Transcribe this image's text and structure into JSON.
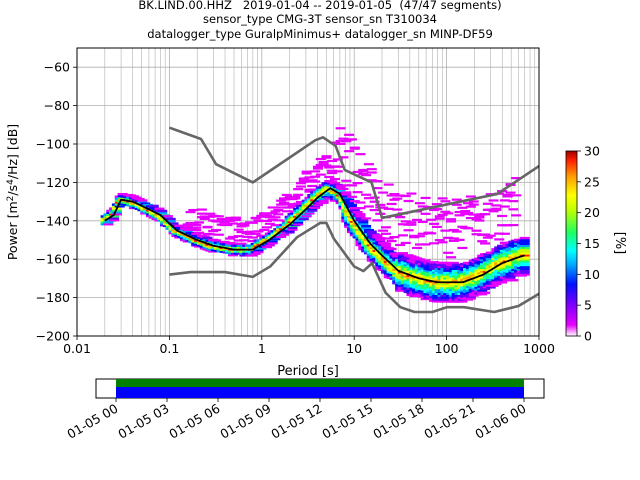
{
  "title_lines": [
    "BK.LIND.00.HHZ   2019-01-04 -- 2019-01-05  (47/47 segments)",
    "sensor_type CMG-3T sensor_sn T310034",
    "datalogger_type GuralpMinimus+ datalogger_sn MINP-DF59"
  ],
  "chart_data": {
    "type": "heatmap",
    "title": "BK.LIND.00.HHZ   2019-01-04 -- 2019-01-05  (47/47 segments)",
    "xlabel": "Period [s]",
    "ylabel": "Power [m²/s⁴/Hz] [dB]",
    "x_scale": "log",
    "xlim": [
      0.01,
      1000
    ],
    "ylim": [
      -200,
      -50
    ],
    "x_ticks": [
      0.01,
      0.1,
      1,
      10,
      100,
      1000
    ],
    "x_tick_labels": [
      "0.01",
      "0.1",
      "1",
      "10",
      "100",
      "1000"
    ],
    "y_ticks": [
      -200,
      -180,
      -160,
      -140,
      -120,
      -100,
      -80,
      -60
    ],
    "y_tick_labels": [
      "−200",
      "−180",
      "−160",
      "−140",
      "−120",
      "−100",
      "−80",
      "−60"
    ],
    "grid": true,
    "colorbar": {
      "label": "[%]",
      "range": [
        0,
        30
      ],
      "ticks": [
        0,
        5,
        10,
        15,
        20,
        25,
        30
      ],
      "tick_labels": [
        "0",
        "5",
        "10",
        "15",
        "20",
        "25",
        "30"
      ],
      "colormap": [
        "#ffffff",
        "#e800ff",
        "#6000ff",
        "#0010ff",
        "#00a0ff",
        "#00ffff",
        "#20ff60",
        "#c0ff00",
        "#ffff00",
        "#ffa000",
        "#ff2000",
        "#a00000"
      ]
    },
    "noise_models": {
      "color": "#666666",
      "high": [
        [
          0.1,
          -91.5
        ],
        [
          0.22,
          -97.4
        ],
        [
          0.32,
          -110.5
        ],
        [
          0.8,
          -120
        ],
        [
          3.8,
          -98
        ],
        [
          4.6,
          -96.5
        ],
        [
          6.3,
          -101
        ],
        [
          7.9,
          -113.5
        ],
        [
          15.4,
          -120
        ],
        [
          20,
          -138.5
        ],
        [
          354,
          -126
        ],
        [
          1000,
          -111.5
        ]
      ],
      "low": [
        [
          0.1,
          -168
        ],
        [
          0.17,
          -166.7
        ],
        [
          0.4,
          -166.7
        ],
        [
          0.8,
          -169.2
        ],
        [
          1.24,
          -163.7
        ],
        [
          2.4,
          -148.6
        ],
        [
          4.3,
          -141.1
        ],
        [
          5,
          -141.1
        ],
        [
          6,
          -149.2
        ],
        [
          10,
          -163.8
        ],
        [
          12.6,
          -166.2
        ],
        [
          15.6,
          -162.1
        ],
        [
          21.9,
          -177.5
        ],
        [
          31.6,
          -185
        ],
        [
          45,
          -187.5
        ],
        [
          70,
          -187.5
        ],
        [
          101,
          -185
        ],
        [
          154,
          -185
        ],
        [
          328,
          -187.5
        ],
        [
          600,
          -184.4
        ],
        [
          1000,
          -178
        ]
      ]
    },
    "mode_series": {
      "name": "mode",
      "color": "#000000",
      "points": [
        [
          0.02,
          -140
        ],
        [
          0.025,
          -137
        ],
        [
          0.03,
          -129
        ],
        [
          0.04,
          -130
        ],
        [
          0.06,
          -134
        ],
        [
          0.08,
          -137
        ],
        [
          0.12,
          -145
        ],
        [
          0.2,
          -150
        ],
        [
          0.3,
          -153
        ],
        [
          0.5,
          -155
        ],
        [
          0.8,
          -155
        ],
        [
          1.2,
          -150
        ],
        [
          2,
          -142
        ],
        [
          3,
          -134
        ],
        [
          4,
          -128
        ],
        [
          5.5,
          -123
        ],
        [
          7,
          -126
        ],
        [
          10,
          -140
        ],
        [
          15,
          -152
        ],
        [
          20,
          -158
        ],
        [
          30,
          -166
        ],
        [
          50,
          -170
        ],
        [
          80,
          -172
        ],
        [
          100,
          -172
        ],
        [
          150,
          -172
        ],
        [
          250,
          -168
        ],
        [
          400,
          -162
        ],
        [
          600,
          -159
        ],
        [
          700,
          -158
        ]
      ]
    }
  },
  "availability": {
    "tick_labels": [
      "01-05 00",
      "01-05 03",
      "01-05 06",
      "01-05 09",
      "01-05 12",
      "01-05 15",
      "01-05 18",
      "01-05 21",
      "01-06 00"
    ],
    "colors": {
      "top": "#008000",
      "bottom": "#0000ff"
    }
  }
}
